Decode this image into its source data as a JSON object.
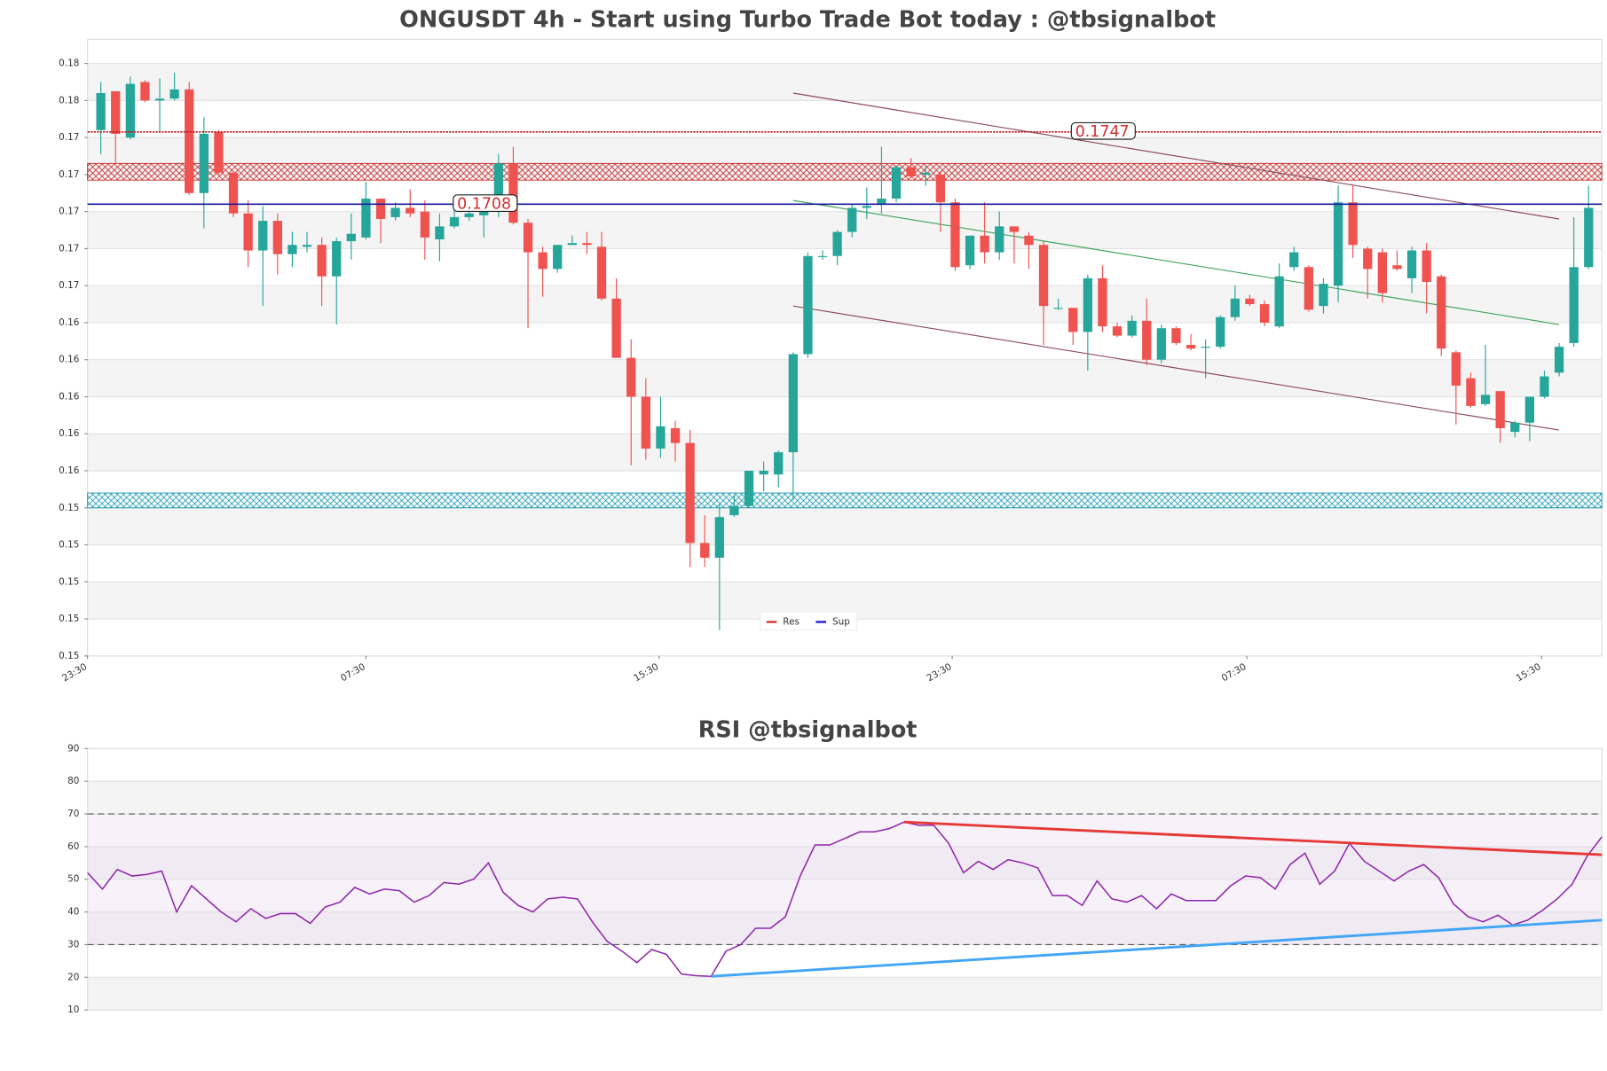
{
  "chart_data": [
    {
      "type": "candlestick",
      "title": "ONGUSDT 4h - Start using Turbo Trade Bot today : @tbsignalbot",
      "up_color": "#26a69a",
      "down_color": "#ef5350",
      "xlim": [
        -0.9,
        101.9
      ],
      "xticks": [
        {
          "value": -0.9,
          "label": "23:30"
        },
        {
          "value": 18.0,
          "label": "07:30"
        },
        {
          "value": 37.9,
          "label": "15:30"
        },
        {
          "value": 57.8,
          "label": "23:30"
        },
        {
          "value": 77.8,
          "label": "07:30"
        },
        {
          "value": 97.8,
          "label": "15:30"
        }
      ],
      "ylim": [
        0.1464,
        0.1797
      ],
      "yticks": [
        {
          "value": 0.1464,
          "label": "0.15"
        },
        {
          "value": 0.1484,
          "label": "0.15"
        },
        {
          "value": 0.1504,
          "label": "0.15"
        },
        {
          "value": 0.1524,
          "label": "0.15"
        },
        {
          "value": 0.1544,
          "label": "0.15"
        },
        {
          "value": 0.1564,
          "label": "0.16"
        },
        {
          "value": 0.1584,
          "label": "0.16"
        },
        {
          "value": 0.1604,
          "label": "0.16"
        },
        {
          "value": 0.1624,
          "label": "0.16"
        },
        {
          "value": 0.1644,
          "label": "0.16"
        },
        {
          "value": 0.1664,
          "label": "0.17"
        },
        {
          "value": 0.1684,
          "label": "0.17"
        },
        {
          "value": 0.1704,
          "label": "0.17"
        },
        {
          "value": 0.1724,
          "label": "0.17"
        },
        {
          "value": 0.1744,
          "label": "0.17"
        },
        {
          "value": 0.1764,
          "label": "0.18"
        },
        {
          "value": 0.1784,
          "label": "0.18"
        }
      ],
      "open": [
        0.1748,
        0.1769,
        0.1744,
        0.1774,
        0.1764,
        0.1765,
        0.177,
        0.1714,
        0.1747,
        0.1725,
        0.1703,
        0.1683,
        0.1699,
        0.1681,
        0.1685,
        0.1686,
        0.1669,
        0.1688,
        0.169,
        0.1711,
        0.1701,
        0.1706,
        0.1704,
        0.1689,
        0.1696,
        0.1701,
        0.1702,
        0.1704,
        0.173,
        0.1698,
        0.1682,
        0.1673,
        0.1686,
        0.1687,
        0.1685,
        0.1657,
        0.1625,
        0.1604,
        0.1576,
        0.1587,
        0.1579,
        0.1525,
        0.1517,
        0.154,
        0.1545,
        0.1562,
        0.1562,
        0.1574,
        0.1627,
        0.168,
        0.168,
        0.1693,
        0.1706,
        0.1708,
        0.1711,
        0.1728,
        0.1724,
        0.1724,
        0.1709,
        0.1675,
        0.1691,
        0.1682,
        0.1696,
        0.1691,
        0.1686,
        0.1652,
        0.1652,
        0.1639,
        0.1668,
        0.1642,
        0.1637,
        0.1645,
        0.1624,
        0.1641,
        0.1632,
        0.1631,
        0.1631,
        0.1647,
        0.1657,
        0.1654,
        0.1642,
        0.1674,
        0.1674,
        0.1653,
        0.1664,
        0.1709,
        0.1684,
        0.1682,
        0.1675,
        0.1668,
        0.1683,
        0.1669,
        0.1628,
        0.1614,
        0.16,
        0.1607,
        0.1585,
        0.159,
        0.1604,
        0.1617,
        0.1633,
        0.1674
      ],
      "high": [
        0.1774,
        0.1769,
        0.1777,
        0.1775,
        0.1776,
        0.1779,
        0.1774,
        0.1755,
        0.1748,
        0.1726,
        0.171,
        0.1707,
        0.1703,
        0.1693,
        0.1693,
        0.169,
        0.169,
        0.1703,
        0.172,
        0.1711,
        0.1709,
        0.1716,
        0.171,
        0.1703,
        0.1706,
        0.1707,
        0.1713,
        0.1735,
        0.1739,
        0.17,
        0.1685,
        0.1686,
        0.1691,
        0.1693,
        0.1693,
        0.1668,
        0.1635,
        0.1614,
        0.1604,
        0.1591,
        0.1586,
        0.154,
        0.1546,
        0.1551,
        0.1564,
        0.1569,
        0.1575,
        0.1628,
        0.1682,
        0.1683,
        0.1694,
        0.1708,
        0.1717,
        0.1739,
        0.1729,
        0.1733,
        0.1729,
        0.1726,
        0.1711,
        0.1691,
        0.1709,
        0.1704,
        0.1696,
        0.1693,
        0.1688,
        0.1657,
        0.1652,
        0.167,
        0.1675,
        0.1644,
        0.1648,
        0.1657,
        0.1643,
        0.1642,
        0.1638,
        0.1635,
        0.1648,
        0.1664,
        0.1659,
        0.1656,
        0.1676,
        0.1685,
        0.1675,
        0.1668,
        0.1718,
        0.1718,
        0.1685,
        0.1684,
        0.1683,
        0.1685,
        0.1687,
        0.167,
        0.1629,
        0.1617,
        0.1632,
        0.1607,
        0.1591,
        0.1604,
        0.1618,
        0.1633,
        0.1701,
        0.1718
      ],
      "low": [
        0.1735,
        0.173,
        0.1743,
        0.1763,
        0.1747,
        0.1764,
        0.1713,
        0.1695,
        0.1724,
        0.1701,
        0.1674,
        0.1653,
        0.167,
        0.1674,
        0.1682,
        0.1653,
        0.1643,
        0.1678,
        0.1689,
        0.1687,
        0.1699,
        0.1701,
        0.1678,
        0.1677,
        0.1695,
        0.1699,
        0.169,
        0.1701,
        0.1697,
        0.1641,
        0.1658,
        0.1671,
        0.1686,
        0.1681,
        0.1656,
        0.1625,
        0.1567,
        0.157,
        0.1571,
        0.1569,
        0.1512,
        0.1512,
        0.1478,
        0.1539,
        0.1544,
        0.1553,
        0.1555,
        0.1548,
        0.1625,
        0.1678,
        0.1675,
        0.169,
        0.17,
        0.1703,
        0.1709,
        0.1722,
        0.1718,
        0.1693,
        0.1672,
        0.1673,
        0.1676,
        0.1678,
        0.1676,
        0.1673,
        0.1632,
        0.1651,
        0.1632,
        0.1618,
        0.1639,
        0.1636,
        0.1636,
        0.1621,
        0.1622,
        0.1632,
        0.1629,
        0.1614,
        0.163,
        0.1645,
        0.1653,
        0.1642,
        0.1641,
        0.1672,
        0.165,
        0.1649,
        0.1655,
        0.1679,
        0.1657,
        0.1655,
        0.1672,
        0.166,
        0.1649,
        0.1626,
        0.1589,
        0.1598,
        0.1599,
        0.1579,
        0.1582,
        0.158,
        0.1603,
        0.1615,
        0.1631,
        0.1673
      ],
      "close": [
        0.1768,
        0.1746,
        0.1773,
        0.1764,
        0.1765,
        0.177,
        0.1714,
        0.1746,
        0.1725,
        0.1703,
        0.1683,
        0.1699,
        0.1681,
        0.1686,
        0.1686,
        0.1669,
        0.1688,
        0.1692,
        0.1711,
        0.17,
        0.1706,
        0.1703,
        0.169,
        0.1696,
        0.1701,
        0.1703,
        0.1704,
        0.173,
        0.1698,
        0.1682,
        0.1673,
        0.1686,
        0.1687,
        0.1686,
        0.1657,
        0.1625,
        0.1604,
        0.1576,
        0.1588,
        0.1579,
        0.1525,
        0.1517,
        0.1539,
        0.1545,
        0.1564,
        0.1564,
        0.1574,
        0.1627,
        0.168,
        0.168,
        0.1693,
        0.1706,
        0.1707,
        0.1711,
        0.1728,
        0.1723,
        0.1725,
        0.1709,
        0.1674,
        0.1691,
        0.1682,
        0.1696,
        0.1693,
        0.1686,
        0.1653,
        0.1652,
        0.1639,
        0.1668,
        0.1642,
        0.1637,
        0.1645,
        0.1624,
        0.1641,
        0.1633,
        0.163,
        0.1631,
        0.1647,
        0.1657,
        0.1654,
        0.1644,
        0.1669,
        0.1682,
        0.1651,
        0.1665,
        0.1709,
        0.1686,
        0.1673,
        0.166,
        0.1673,
        0.1683,
        0.1666,
        0.163,
        0.161,
        0.1599,
        0.1605,
        0.1587,
        0.159,
        0.1604,
        0.1615,
        0.1631,
        0.1674,
        0.1706
      ],
      "zones": [
        {
          "from": 0.1721,
          "to": 0.173,
          "color": "#c62828"
        },
        {
          "from": 0.1544,
          "to": 0.1552,
          "color": "#1e9bb5"
        }
      ],
      "lines": [
        {
          "name": "Res",
          "value": 0.1747,
          "label": "0.1747",
          "color": "#b71c1c"
        },
        {
          "name": "Sup",
          "value": 0.1708,
          "label": "0.1708",
          "color": "#1a1aa0"
        }
      ],
      "trendlines": [
        {
          "points": [
            [
              47,
              0.1768
            ],
            [
              99,
              0.17
            ]
          ],
          "color": "#8e4a5e"
        },
        {
          "points": [
            [
              47,
              0.1653
            ],
            [
              99,
              0.1586
            ]
          ],
          "color": "#8e4a5e"
        },
        {
          "points": [
            [
              47,
              0.171
            ],
            [
              99,
              0.1643
            ]
          ],
          "color": "#3fa55a"
        }
      ]
    },
    {
      "type": "line",
      "title": "RSI @tbsignalbot",
      "color": "#8e24aa",
      "xlim": [
        0,
        102
      ],
      "ylim": [
        10,
        90
      ],
      "yticks": [
        10,
        20,
        30,
        40,
        50,
        60,
        70,
        80,
        90
      ],
      "levels": [
        30,
        70
      ],
      "values": [
        52,
        47,
        53,
        51,
        51.5,
        52.5,
        40,
        48,
        44,
        40,
        37,
        41,
        38,
        39.5,
        39.5,
        36.5,
        41.5,
        43,
        47.5,
        45.5,
        47,
        46.5,
        43,
        45,
        49,
        48.5,
        50,
        55,
        46,
        42,
        40,
        44,
        44.5,
        44,
        37,
        31,
        28,
        24.5,
        28.5,
        27,
        21,
        20.5,
        20.3,
        28,
        30,
        35,
        35,
        38.5,
        51,
        60.5,
        60.5,
        62.5,
        64.5,
        64.5,
        65.5,
        67.5,
        66.5,
        66.5,
        61,
        52,
        55.5,
        53,
        56,
        55,
        53.5,
        45,
        45,
        42,
        49.5,
        44,
        43,
        45,
        41,
        45.5,
        43.5,
        43.5,
        43.5,
        48,
        51,
        50.5,
        47,
        54.5,
        58,
        48.5,
        52.5,
        61,
        55.5,
        52.5,
        49.5,
        52.5,
        54.5,
        50.5,
        42.5,
        38.5,
        37,
        39,
        36,
        37.5,
        40.5,
        44,
        48.5,
        57,
        63
      ],
      "trendlines": [
        {
          "points": [
            [
              55,
              67.5
            ],
            [
              102,
              57.5
            ]
          ],
          "color": "#e53935"
        },
        {
          "points": [
            [
              42,
              20.3
            ],
            [
              102,
              37.5
            ]
          ],
          "color": "#42a5f5"
        }
      ]
    }
  ]
}
